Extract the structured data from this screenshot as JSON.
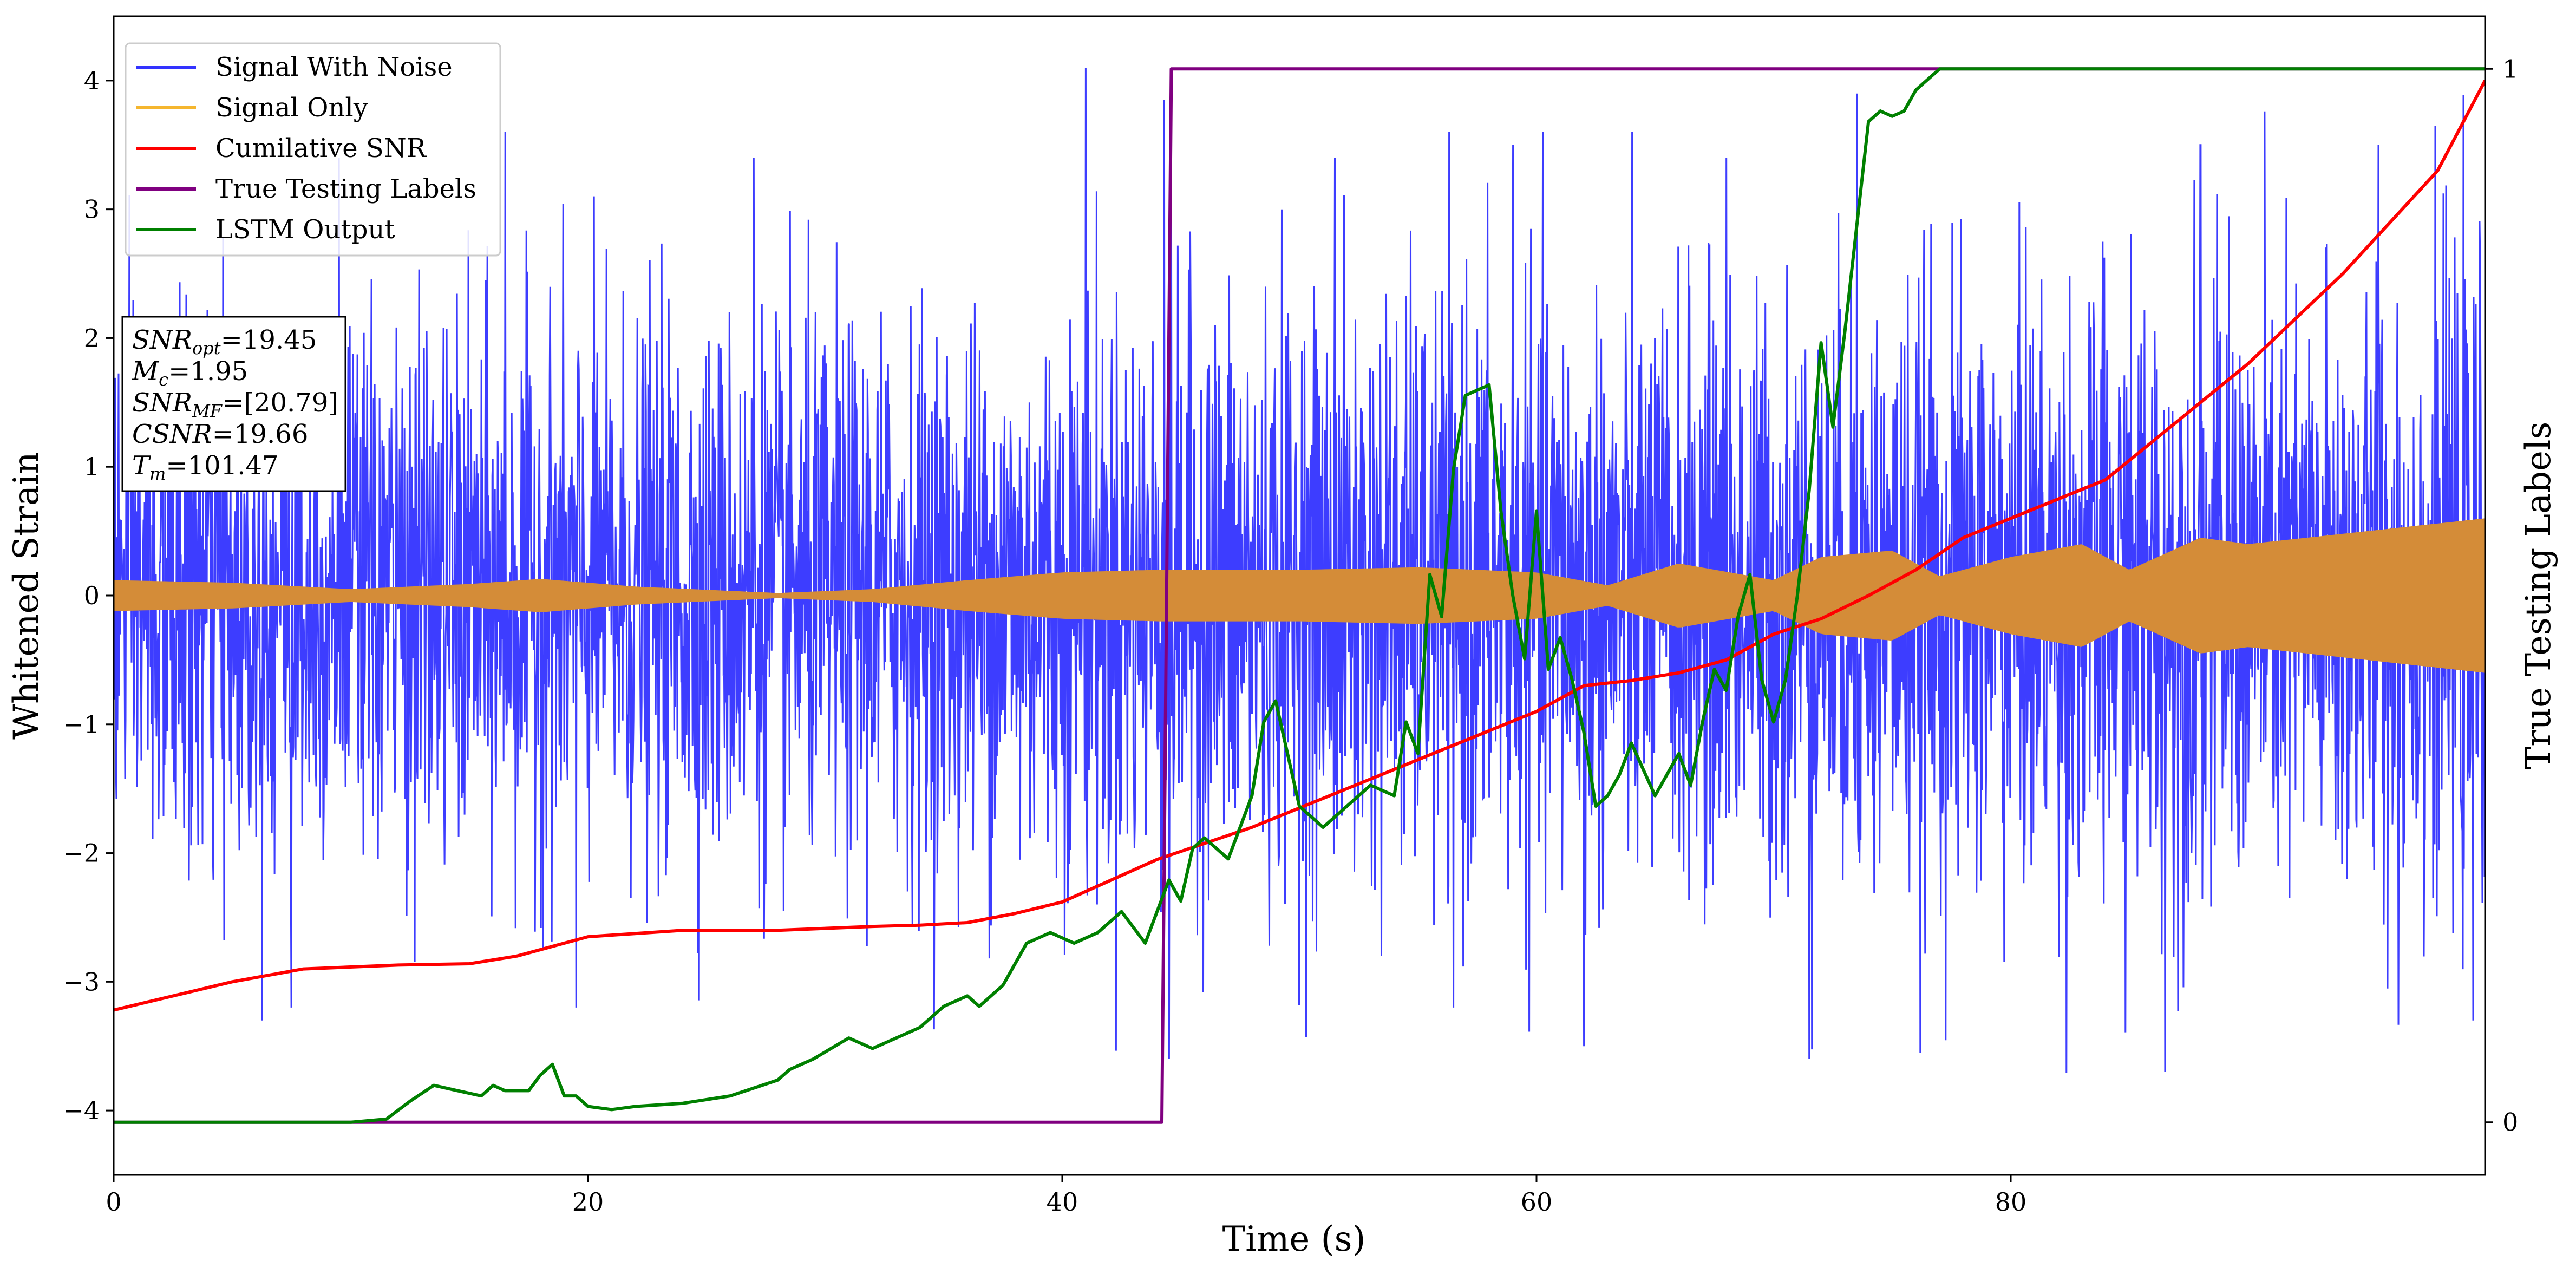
{
  "chart_data": {
    "type": "line",
    "xlabel": "Time (s)",
    "ylabel": "Whitened Strain",
    "y2label": "True Testing Labels",
    "xlim": [
      0,
      100
    ],
    "ylim": [
      -4.5,
      4.5
    ],
    "y2lim": [
      -0.05,
      1.05
    ],
    "x_ticks": [
      0,
      20,
      40,
      60,
      80
    ],
    "y_ticks": [
      -4,
      -3,
      -2,
      -1,
      0,
      1,
      2,
      3,
      4
    ],
    "y2_ticks": [
      0,
      1
    ],
    "legend_position": "top-left",
    "info_box": {
      "snr_opt": {
        "name": "SNR",
        "sub": "opt",
        "value": "19.45"
      },
      "mc": {
        "name": "M",
        "sub": "c",
        "value": "1.95"
      },
      "snr_mf": {
        "name": "SNR",
        "sub": "MF",
        "value": "[20.79]"
      },
      "csnr": {
        "name": "CSNR",
        "sub": "",
        "value": "19.66"
      },
      "tm": {
        "name": "T",
        "sub": "m",
        "value": "101.47"
      }
    },
    "series": [
      {
        "name": "Signal With Noise",
        "color": "#3333ff",
        "axis": "left",
        "envelope": {
          "x": [
            0,
            10,
            20,
            30,
            40,
            44,
            50,
            60,
            70,
            80,
            90,
            100
          ],
          "typical": [
            1.1,
            1.1,
            1.1,
            1.1,
            1.15,
            1.2,
            1.2,
            1.2,
            1.2,
            1.25,
            1.25,
            1.3
          ],
          "peak_spikes": [
            [
              9.5,
              3.4
            ],
            [
              16.5,
              3.6
            ],
            [
              27,
              3.4
            ],
            [
              41,
              4.1
            ],
            [
              44.3,
              3.85
            ],
            [
              51.5,
              3.4
            ],
            [
              59,
              3.5
            ],
            [
              68,
              3.4
            ],
            [
              73.5,
              3.9
            ],
            [
              88,
              3.5
            ],
            [
              95.5,
              3.5
            ]
          ],
          "trough_spikes": [
            [
              7.5,
              -3.2
            ],
            [
              19.5,
              -3.2
            ],
            [
              44.5,
              -3.6
            ],
            [
              56.5,
              -3.2
            ],
            [
              62,
              -3.5
            ],
            [
              71.5,
              -3.6
            ],
            [
              86.5,
              -3.7
            ],
            [
              99.5,
              -3.3
            ]
          ]
        }
      },
      {
        "name": "Signal Only",
        "color": "#f5b62e",
        "axis": "left",
        "envelope": {
          "x": [
            0,
            5,
            10,
            15,
            18,
            22,
            28,
            32,
            36,
            40,
            44,
            50,
            55,
            60,
            63,
            66,
            70,
            72,
            75,
            77,
            80,
            83,
            85,
            88,
            90,
            95,
            100
          ],
          "amp": [
            0.12,
            0.1,
            0.05,
            0.09,
            0.13,
            0.07,
            0.02,
            0.05,
            0.12,
            0.18,
            0.2,
            0.2,
            0.22,
            0.18,
            0.08,
            0.25,
            0.12,
            0.3,
            0.35,
            0.15,
            0.3,
            0.4,
            0.2,
            0.45,
            0.4,
            0.5,
            0.6
          ]
        }
      },
      {
        "name": "Cumilative SNR",
        "color": "#ff0000",
        "axis": "left",
        "x": [
          0,
          5,
          8,
          12,
          15,
          17,
          20,
          24,
          28,
          32,
          34,
          36,
          38,
          40,
          44,
          48,
          52,
          56,
          60,
          62,
          64,
          66,
          68,
          70,
          72,
          74,
          76,
          78,
          80,
          84,
          86,
          90,
          94,
          98,
          100
        ],
        "y": [
          -3.22,
          -3.0,
          -2.9,
          -2.87,
          -2.86,
          -2.8,
          -2.65,
          -2.6,
          -2.6,
          -2.57,
          -2.56,
          -2.54,
          -2.47,
          -2.38,
          -2.05,
          -1.8,
          -1.5,
          -1.2,
          -0.9,
          -0.7,
          -0.66,
          -0.6,
          -0.5,
          -0.3,
          -0.18,
          0.0,
          0.2,
          0.45,
          0.6,
          0.9,
          1.2,
          1.8,
          2.5,
          3.3,
          4.0
        ]
      },
      {
        "name": "True Testing Labels",
        "color": "#800080",
        "axis": "right",
        "x": [
          0,
          44.2,
          44.6,
          100
        ],
        "y": [
          0,
          0,
          1,
          1
        ]
      },
      {
        "name": "LSTM Output",
        "color": "#008000",
        "axis": "right",
        "x": [
          0,
          10,
          11.5,
          12.5,
          13.5,
          14.5,
          15.5,
          16,
          16.5,
          17.5,
          18,
          18.5,
          19,
          19.5,
          20,
          21,
          22,
          24,
          26,
          28,
          28.5,
          29.5,
          31,
          32,
          33,
          34,
          35,
          36,
          36.5,
          37.5,
          38.5,
          39.5,
          40.5,
          41.5,
          42.5,
          43.5,
          44,
          44.5,
          45,
          45.5,
          46,
          47,
          48,
          48.5,
          49,
          50,
          51,
          52,
          53,
          54,
          54.5,
          55,
          55.5,
          56,
          56.5,
          57,
          58,
          58.5,
          59,
          59.5,
          60,
          60.5,
          61,
          61.5,
          62,
          62.5,
          63,
          63.5,
          64,
          65,
          66,
          66.5,
          67,
          67.5,
          68,
          68.5,
          69,
          69.5,
          70,
          70.5,
          71,
          71.5,
          72,
          72.5,
          73,
          73.5,
          74,
          74.5,
          75,
          75.5,
          76,
          76.5,
          77,
          78,
          80,
          85,
          90,
          100
        ],
        "y": [
          0,
          0,
          0.003,
          0.02,
          0.035,
          0.03,
          0.025,
          0.035,
          0.03,
          0.03,
          0.045,
          0.055,
          0.025,
          0.025,
          0.015,
          0.012,
          0.015,
          0.018,
          0.025,
          0.04,
          0.05,
          0.06,
          0.08,
          0.07,
          0.08,
          0.09,
          0.11,
          0.12,
          0.11,
          0.13,
          0.17,
          0.18,
          0.17,
          0.18,
          0.2,
          0.17,
          0.2,
          0.23,
          0.21,
          0.26,
          0.27,
          0.25,
          0.31,
          0.38,
          0.4,
          0.3,
          0.28,
          0.3,
          0.32,
          0.31,
          0.38,
          0.35,
          0.52,
          0.48,
          0.62,
          0.69,
          0.7,
          0.58,
          0.5,
          0.44,
          0.58,
          0.43,
          0.46,
          0.42,
          0.37,
          0.3,
          0.31,
          0.33,
          0.36,
          0.31,
          0.35,
          0.32,
          0.38,
          0.43,
          0.41,
          0.48,
          0.52,
          0.42,
          0.38,
          0.42,
          0.5,
          0.6,
          0.74,
          0.66,
          0.75,
          0.85,
          0.95,
          0.96,
          0.955,
          0.96,
          0.98,
          0.99,
          1.0,
          1.0,
          1.0,
          1.0,
          1.0,
          1.0
        ]
      }
    ]
  }
}
